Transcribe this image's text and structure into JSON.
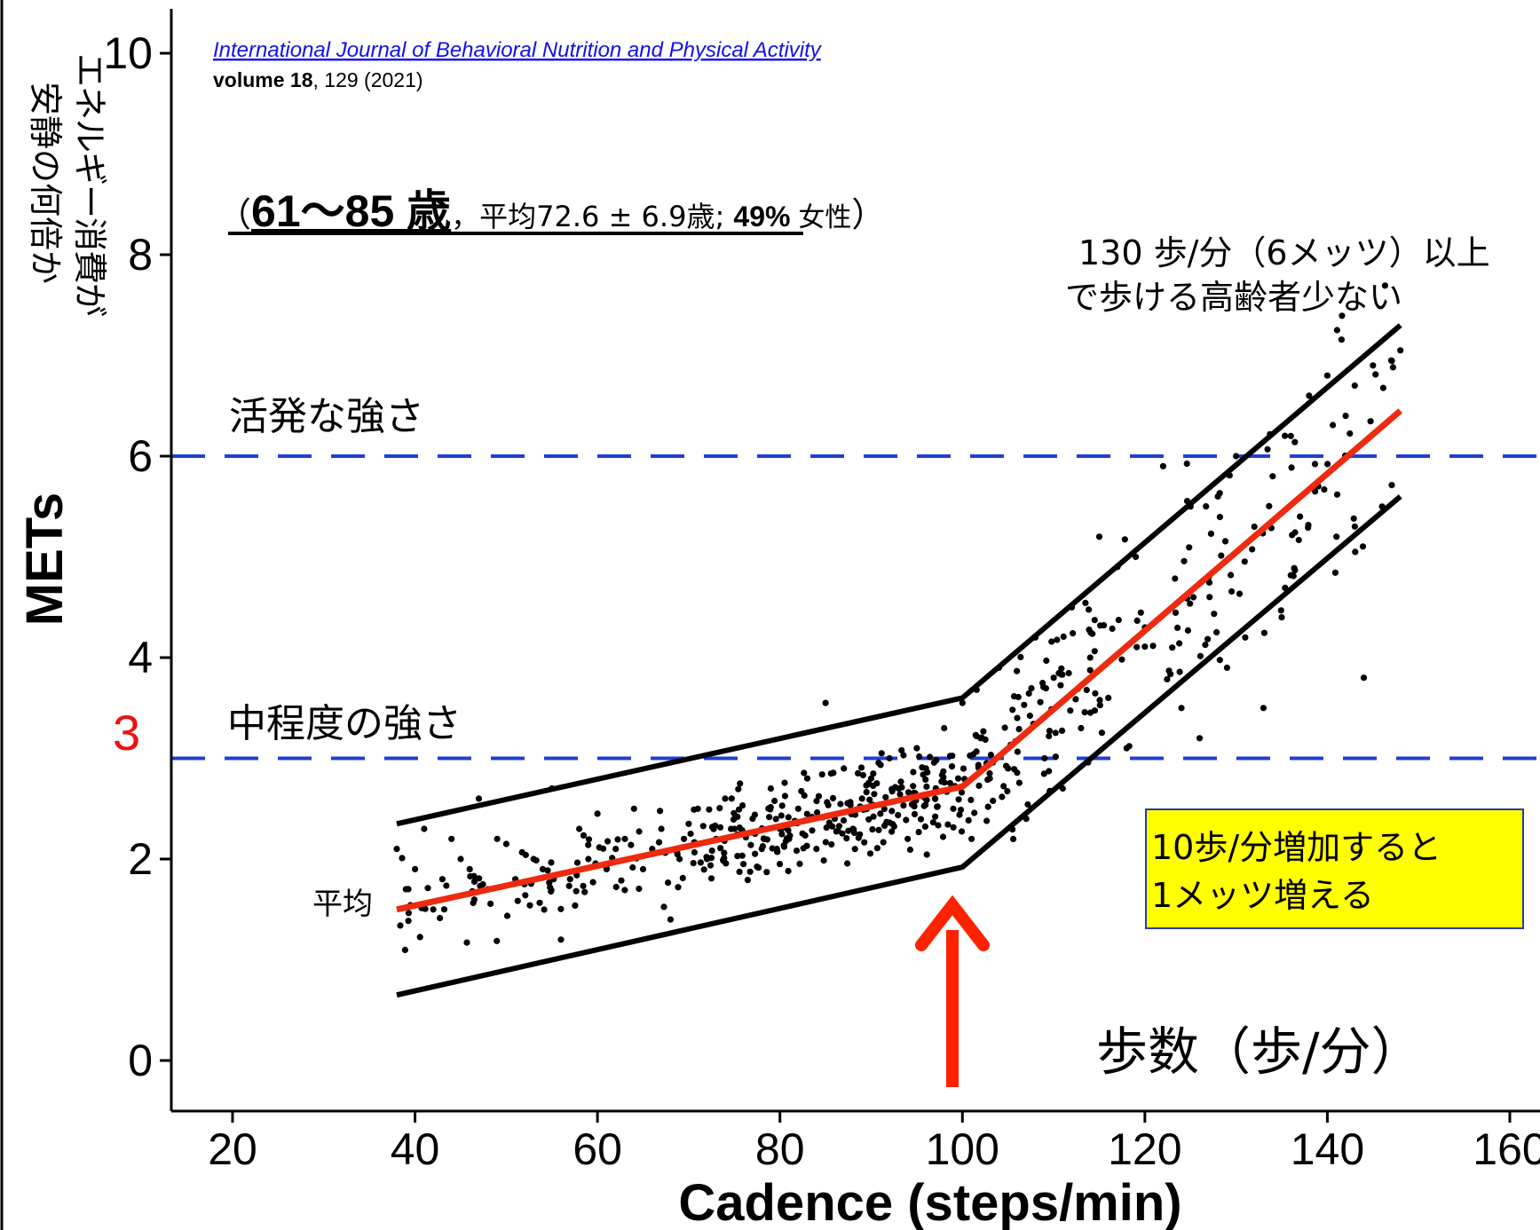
{
  "colors": {
    "background": "#ffffff",
    "axis": "#000000",
    "points": "#000000",
    "bound_lines": "#000000",
    "mean_line": "#ee2a10",
    "reference_lines": "#1f3fd4",
    "link": "#1010ee",
    "red_label": "#ee1111",
    "arrow": "#ff2200",
    "note_box_fill": "#ffff00",
    "note_box_border": "#2b3aa8"
  },
  "citation": {
    "journal": "International Journal of Behavioral Nutrition and Physical Activity",
    "volume_label": "volume 18",
    "issue": ",  129 (2021)"
  },
  "population": {
    "open": "（",
    "age_range": "61〜85 歳",
    "mean_age": "，平均72.6 ± 6.9歳; ",
    "female_pct": "49% ",
    "female_label": "女性",
    "close": "）"
  },
  "y_annotation": {
    "line1": "エネルギー消費が",
    "line2": "安静の何倍か"
  },
  "chart_data": {
    "type": "scatter",
    "xlabel": "Cadence (steps/min)",
    "ylabel": "METs",
    "xlim": [
      13,
      163
    ],
    "ylim": [
      -0.5,
      10.4
    ],
    "xticks": [
      20,
      40,
      60,
      80,
      100,
      120,
      140,
      160
    ],
    "yticks": [
      0,
      2,
      4,
      6,
      8,
      10
    ],
    "grid": false,
    "legend": "none",
    "reference_lines": [
      {
        "y": 6,
        "label": "活発な強さ",
        "style": "dashed",
        "color": "#1f3fd4"
      },
      {
        "y": 3,
        "label": "中程度の強さ",
        "style": "dashed",
        "color": "#1f3fd4",
        "axis_mark": "3"
      }
    ],
    "series": [
      {
        "name": "平均",
        "kind": "line",
        "color": "#ee2a10",
        "x": [
          38,
          100,
          104,
          148
        ],
        "y": [
          1.5,
          2.72,
          3.02,
          6.45
        ]
      },
      {
        "kind": "line",
        "color": "#000000",
        "x": [
          38,
          100,
          148
        ],
        "y": [
          2.35,
          3.6,
          7.3
        ]
      },
      {
        "kind": "line",
        "color": "#000000",
        "x": [
          38,
          100,
          148
        ],
        "y": [
          0.65,
          1.92,
          5.6
        ]
      }
    ],
    "points_description_count": 620,
    "points": [
      [
        38,
        2.1
      ],
      [
        39,
        1.7
      ],
      [
        40,
        1.9
      ],
      [
        41,
        2.3
      ],
      [
        42,
        1.5
      ],
      [
        43,
        1.8
      ],
      [
        44,
        2.2
      ],
      [
        45,
        2.0
      ],
      [
        46,
        1.9
      ],
      [
        47,
        2.6
      ],
      [
        48,
        1.7
      ],
      [
        49,
        2.2
      ],
      [
        50,
        2.15
      ],
      [
        51,
        1.8
      ],
      [
        52,
        1.75
      ],
      [
        53,
        2.0
      ],
      [
        54,
        1.9
      ],
      [
        55,
        2.7
      ],
      [
        56,
        1.2
      ],
      [
        57,
        1.8
      ],
      [
        58,
        2.3
      ],
      [
        59,
        2.0
      ],
      [
        60,
        2.45
      ],
      [
        61,
        1.9
      ],
      [
        62,
        2.1
      ],
      [
        63,
        2.2
      ],
      [
        64,
        2.5
      ],
      [
        65,
        1.9
      ],
      [
        66,
        2.1
      ],
      [
        67,
        2.3
      ],
      [
        68,
        1.4
      ],
      [
        69,
        2.0
      ],
      [
        70,
        2.35
      ],
      [
        71,
        2.5
      ],
      [
        72,
        2.0
      ],
      [
        73,
        2.2
      ],
      [
        74,
        2.6
      ],
      [
        75,
        2.3
      ],
      [
        76,
        1.95
      ],
      [
        77,
        2.4
      ],
      [
        78,
        2.1
      ],
      [
        79,
        2.7
      ],
      [
        80,
        2.3
      ],
      [
        81,
        2.2
      ],
      [
        82,
        2.5
      ],
      [
        83,
        2.8
      ],
      [
        84,
        2.1
      ],
      [
        85,
        3.55
      ],
      [
        86,
        2.4
      ],
      [
        87,
        2.9
      ],
      [
        88,
        2.3
      ],
      [
        89,
        2.6
      ],
      [
        90,
        2.8
      ],
      [
        91,
        2.45
      ],
      [
        92,
        3.0
      ],
      [
        93,
        2.7
      ],
      [
        94,
        2.2
      ],
      [
        95,
        3.1
      ],
      [
        96,
        2.9
      ],
      [
        97,
        2.6
      ],
      [
        98,
        3.3
      ],
      [
        99,
        2.5
      ],
      [
        100,
        3.55
      ],
      [
        101,
        2.2
      ],
      [
        102,
        3.2
      ],
      [
        103,
        2.8
      ],
      [
        104,
        3.9
      ],
      [
        105,
        2.9
      ],
      [
        106,
        3.4
      ],
      [
        107,
        2.4
      ],
      [
        108,
        4.2
      ],
      [
        109,
        3.0
      ],
      [
        110,
        3.8
      ],
      [
        111,
        2.7
      ],
      [
        112,
        4.5
      ],
      [
        113,
        3.3
      ],
      [
        114,
        4.0
      ],
      [
        115,
        5.2
      ],
      [
        116,
        3.6
      ],
      [
        117,
        4.9
      ],
      [
        118,
        3.1
      ],
      [
        119,
        5.0
      ],
      [
        120,
        4.3
      ],
      [
        121,
        2.4
      ],
      [
        122,
        5.9
      ],
      [
        123,
        4.1
      ],
      [
        124,
        3.5
      ],
      [
        125,
        5.5
      ],
      [
        126,
        3.2
      ],
      [
        127,
        4.8
      ],
      [
        128,
        5.6
      ],
      [
        129,
        3.9
      ],
      [
        130,
        6.0
      ],
      [
        131,
        4.2
      ],
      [
        132,
        5.3
      ],
      [
        133,
        3.5
      ],
      [
        134,
        5.8
      ],
      [
        135,
        4.4
      ],
      [
        136,
        6.2
      ],
      [
        137,
        5.4
      ],
      [
        138,
        6.6
      ],
      [
        139,
        5.7
      ],
      [
        140,
        6.8
      ],
      [
        141,
        5.2
      ],
      [
        142,
        6.4
      ],
      [
        143,
        6.7
      ],
      [
        144,
        3.8
      ],
      [
        145,
        6.9
      ],
      [
        146,
        5.5
      ],
      [
        147,
        6.95
      ],
      [
        148,
        7.05
      ]
    ]
  },
  "annotations": {
    "high_speed": {
      "line1": "130 歩/分（6メッツ）以上",
      "line2": "で歩ける高齢者少ない"
    },
    "mean_label": "平均",
    "note_box": {
      "line1": "10歩/分増加すると",
      "line2": "1メッツ増える"
    },
    "jp_xlabel": "歩数（歩/分）"
  }
}
